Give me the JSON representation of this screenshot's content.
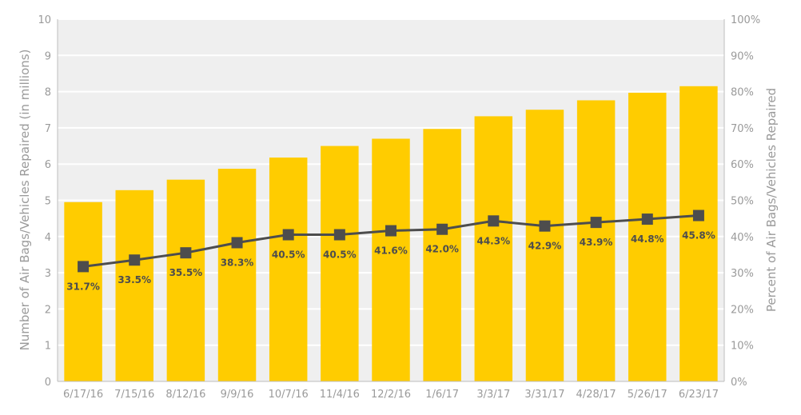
{
  "chart_data": {
    "type": "bar",
    "categories": [
      "6/17/16",
      "7/15/16",
      "8/12/16",
      "9/9/16",
      "10/7/16",
      "11/4/16",
      "12/2/16",
      "1/6/17",
      "3/3/17",
      "3/31/17",
      "4/28/17",
      "5/26/17",
      "6/23/17"
    ],
    "series": [
      {
        "type": "bar",
        "axis": "left",
        "values": [
          4.95,
          5.28,
          5.57,
          5.87,
          6.18,
          6.5,
          6.7,
          6.97,
          7.32,
          7.5,
          7.76,
          7.97,
          8.15
        ]
      },
      {
        "type": "line",
        "axis": "right",
        "values": [
          31.7,
          33.5,
          35.5,
          38.3,
          40.5,
          40.5,
          41.6,
          42.0,
          44.3,
          42.9,
          43.9,
          44.8,
          45.8
        ],
        "labels": [
          "31.7%",
          "33.5%",
          "35.5%",
          "38.3%",
          "40.5%",
          "40.5%",
          "41.6%",
          "42.0%",
          "44.3%",
          "42.9%",
          "43.9%",
          "44.8%",
          "45.8%"
        ]
      }
    ],
    "ylabel": "Number of Air Bags/Vehicles Repaired (in millions)",
    "y2label": "Percent of Air Bags/Vehicles Repaired",
    "ylim": [
      0,
      10
    ],
    "y2lim": [
      0,
      100
    ],
    "yticks": [
      "0",
      "1",
      "2",
      "3",
      "4",
      "5",
      "6",
      "7",
      "8",
      "9",
      "10"
    ],
    "y2ticks": [
      "0%",
      "10%",
      "20%",
      "30%",
      "40%",
      "50%",
      "60%",
      "70%",
      "80%",
      "90%",
      "100%"
    ],
    "grid": true,
    "colors": {
      "bar": "#FFCC00",
      "line": "#4d4d4d",
      "plot_background": "#efefef",
      "gridline": "#ffffff",
      "text": "#9a9a9a"
    }
  }
}
